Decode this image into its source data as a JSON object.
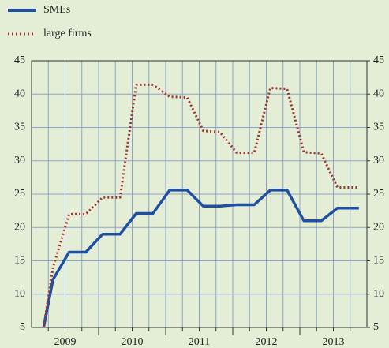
{
  "chart_data": {
    "type": "line",
    "x": [
      2009.18,
      2009.32,
      2009.56,
      2009.81,
      2010.06,
      2010.32,
      2010.56,
      2010.81,
      2011.06,
      2011.32,
      2011.56,
      2011.81,
      2012.06,
      2012.32,
      2012.56,
      2012.81,
      2013.06,
      2013.32,
      2013.56,
      2013.88
    ],
    "series": [
      {
        "name": "SMEs",
        "color": "#1f4fa0",
        "values": [
          5,
          12.2,
          16.3,
          16.3,
          19,
          19,
          22.1,
          22.1,
          25.6,
          25.6,
          23.2,
          23.2,
          23.4,
          23.4,
          25.6,
          25.6,
          21,
          21,
          22.9,
          22.9
        ]
      },
      {
        "name": "large firms",
        "color": "#a0352d",
        "values": [
          5,
          14,
          22,
          22,
          24.5,
          24.5,
          41.4,
          41.4,
          39.6,
          39.5,
          34.5,
          34.3,
          31.2,
          31.2,
          40.9,
          40.8,
          31.3,
          31.1,
          26,
          26
        ]
      }
    ],
    "xlim": [
      2009,
      2014
    ],
    "xticks": [
      {
        "value": 2009.5,
        "label": "2009"
      },
      {
        "value": 2010.5,
        "label": "2010"
      },
      {
        "value": 2011.5,
        "label": "2011"
      },
      {
        "value": 2012.5,
        "label": "2012"
      },
      {
        "value": 2013.5,
        "label": "2013"
      }
    ],
    "ylim": [
      5,
      45
    ],
    "yticks": [
      5,
      10,
      15,
      20,
      25,
      30,
      35,
      40,
      45
    ],
    "y2lim": [
      5,
      45
    ],
    "y2ticks": [
      5,
      10,
      15,
      20,
      25,
      30,
      35,
      40,
      45
    ],
    "grid": true,
    "legend": "top-left"
  }
}
